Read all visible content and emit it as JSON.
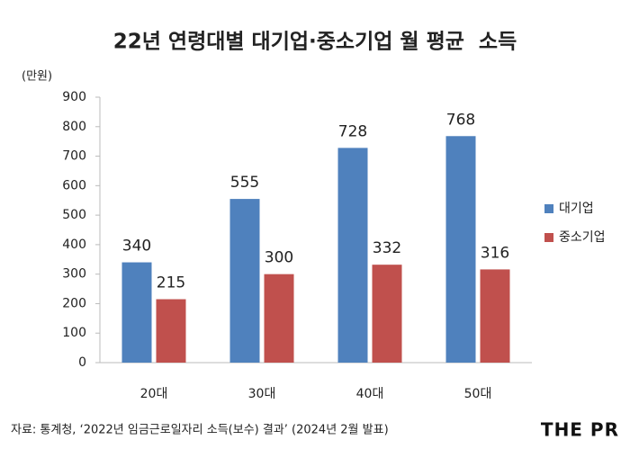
{
  "chart_data": {
    "type": "bar",
    "title": "22년 연령대별 대기업·중소기업 월 평균  소득",
    "y_label": "(만원)",
    "categories": [
      "20대",
      "30대",
      "40대",
      "50대"
    ],
    "series": [
      {
        "name": "대기업",
        "color": "#4f81bd",
        "values": [
          340,
          555,
          728,
          768
        ]
      },
      {
        "name": "중소기업",
        "color": "#c0504d",
        "values": [
          215,
          300,
          332,
          316
        ]
      }
    ],
    "ylim": [
      0,
      900
    ],
    "yticks": [
      0,
      100,
      200,
      300,
      400,
      500,
      600,
      700,
      800,
      900
    ],
    "grid": false,
    "legend": "right",
    "source": "자료: 통계청, ‘2022년 임금근로일자리 소득(보수) 결과’ (2024년 2월 발표)",
    "logo": "THE PR"
  }
}
